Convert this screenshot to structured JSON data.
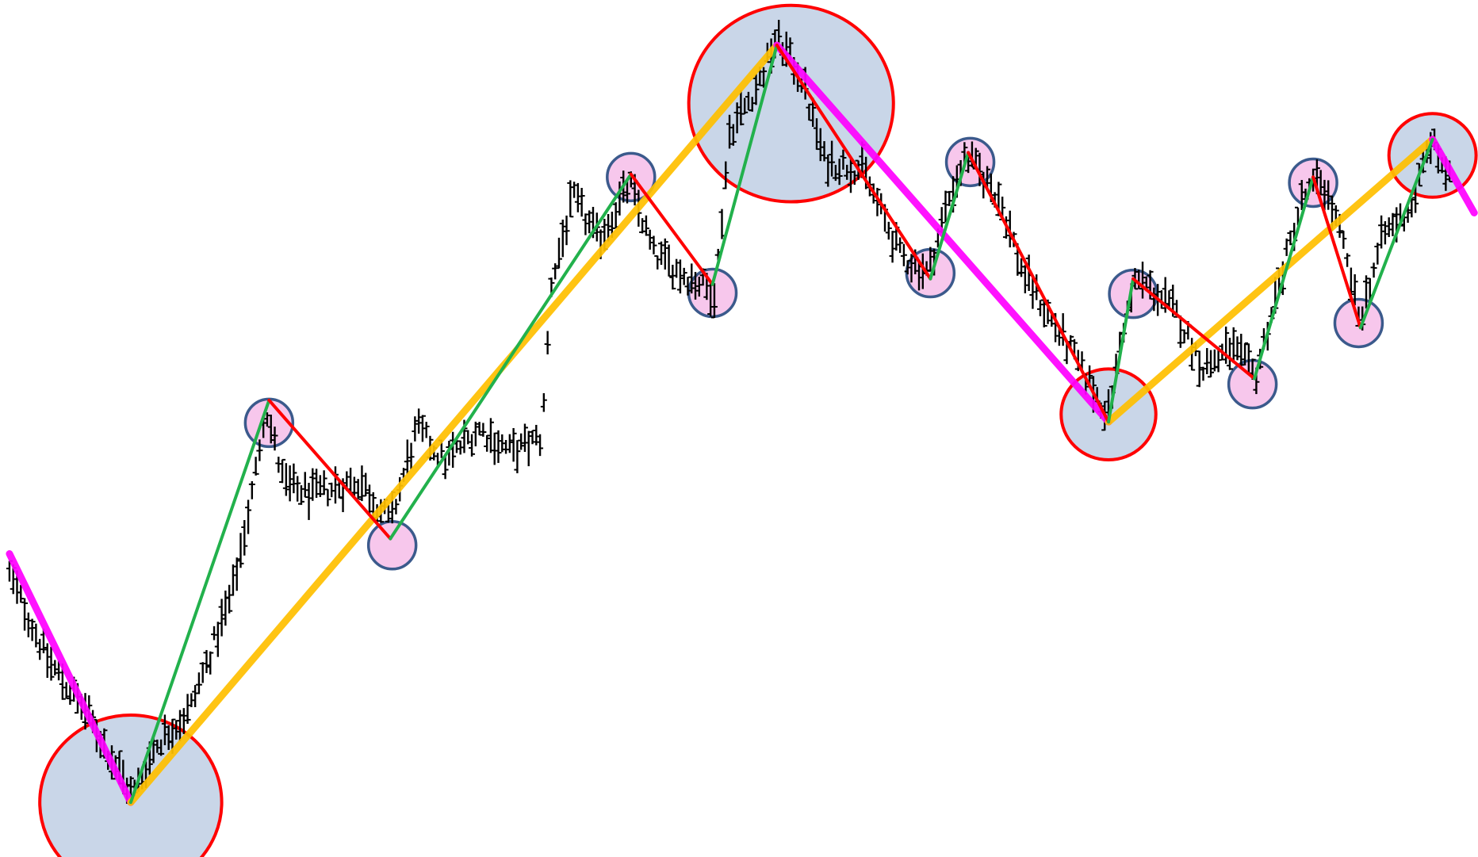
{
  "chart_data": {
    "type": "ohlc",
    "title": "",
    "xlabel": "",
    "ylabel": "",
    "axes_visible": false,
    "grid": false,
    "legend": "none",
    "xlim": [
      0,
      1560
    ],
    "ylim": [
      0,
      910
    ],
    "colors": {
      "bars": "#000000",
      "primary_up": "#ffc000",
      "primary_down": "#ff00ff",
      "minor_up": "#22b14c",
      "minor_down": "#ff0000",
      "major_circle_fill": "#c9d6e8",
      "major_circle_stroke": "#ff0000",
      "minor_circle_fill": "#f7c7ec",
      "minor_circle_stroke": "#3b5a8c"
    },
    "price_path": [
      [
        10,
        300
      ],
      [
        50,
        210
      ],
      [
        90,
        155
      ],
      [
        115,
        110
      ],
      [
        140,
        65
      ],
      [
        165,
        120
      ],
      [
        200,
        155
      ],
      [
        245,
        280
      ],
      [
        268,
        395
      ],
      [
        280,
        480
      ],
      [
        300,
        395
      ],
      [
        330,
        385
      ],
      [
        380,
        400
      ],
      [
        412,
        355
      ],
      [
        440,
        455
      ],
      [
        470,
        420
      ],
      [
        505,
        455
      ],
      [
        540,
        430
      ],
      [
        572,
        445
      ],
      [
        582,
        610
      ],
      [
        605,
        700
      ],
      [
        632,
        655
      ],
      [
        665,
        715
      ],
      [
        690,
        640
      ],
      [
        720,
        620
      ],
      [
        755,
        600
      ],
      [
        770,
        770
      ],
      [
        800,
        820
      ],
      [
        820,
        870
      ],
      [
        845,
        830
      ],
      [
        870,
        740
      ],
      [
        910,
        730
      ],
      [
        950,
        640
      ],
      [
        980,
        620
      ],
      [
        1000,
        695
      ],
      [
        1020,
        745
      ],
      [
        1055,
        700
      ],
      [
        1080,
        620
      ],
      [
        1110,
        570
      ],
      [
        1140,
        520
      ],
      [
        1170,
        470
      ],
      [
        1185,
        560
      ],
      [
        1200,
        615
      ],
      [
        1240,
        580
      ],
      [
        1270,
        520
      ],
      [
        1300,
        540
      ],
      [
        1325,
        510
      ],
      [
        1345,
        590
      ],
      [
        1375,
        700
      ],
      [
        1395,
        720
      ],
      [
        1415,
        660
      ],
      [
        1435,
        570
      ],
      [
        1460,
        660
      ],
      [
        1490,
        690
      ],
      [
        1510,
        760
      ],
      [
        1530,
        720
      ]
    ],
    "primary_trend": [
      {
        "from": [
          10,
          322
        ],
        "to": [
          138,
          58
        ],
        "direction": "down"
      },
      {
        "from": [
          138,
          58
        ],
        "to": [
          820,
          862
        ],
        "direction": "up"
      },
      {
        "from": [
          820,
          862
        ],
        "to": [
          1170,
          462
        ],
        "direction": "down"
      },
      {
        "from": [
          1170,
          462
        ],
        "to": [
          1512,
          762
        ],
        "direction": "up"
      },
      {
        "from": [
          1512,
          762
        ],
        "to": [
          1556,
          684
        ],
        "direction": "down"
      }
    ],
    "minor_swings": [
      {
        "from": [
          138,
          58
        ],
        "to": [
          284,
          485
        ],
        "direction": "up"
      },
      {
        "from": [
          284,
          485
        ],
        "to": [
          412,
          338
        ],
        "direction": "down"
      },
      {
        "from": [
          412,
          338
        ],
        "to": [
          666,
          725
        ],
        "direction": "up"
      },
      {
        "from": [
          666,
          725
        ],
        "to": [
          752,
          608
        ],
        "direction": "down"
      },
      {
        "from": [
          752,
          608
        ],
        "to": [
          820,
          862
        ],
        "direction": "up"
      },
      {
        "from": [
          820,
          862
        ],
        "to": [
          982,
          614
        ],
        "direction": "down"
      },
      {
        "from": [
          982,
          614
        ],
        "to": [
          1022,
          748
        ],
        "direction": "up"
      },
      {
        "from": [
          1022,
          748
        ],
        "to": [
          1170,
          462
        ],
        "direction": "down"
      },
      {
        "from": [
          1170,
          462
        ],
        "to": [
          1196,
          614
        ],
        "direction": "up"
      },
      {
        "from": [
          1196,
          614
        ],
        "to": [
          1324,
          508
        ],
        "direction": "down"
      },
      {
        "from": [
          1324,
          508
        ],
        "to": [
          1386,
          722
        ],
        "direction": "up"
      },
      {
        "from": [
          1386,
          722
        ],
        "to": [
          1436,
          562
        ],
        "direction": "down"
      },
      {
        "from": [
          1436,
          562
        ],
        "to": [
          1512,
          762
        ],
        "direction": "up"
      }
    ],
    "major_pivots": [
      {
        "x": 138,
        "y": 58,
        "type": "low"
      },
      {
        "x": 835,
        "y": 800,
        "type": "high"
      },
      {
        "x": 1170,
        "y": 470,
        "type": "low"
      },
      {
        "x": 1512,
        "y": 745,
        "type": "high"
      }
    ],
    "minor_pivots": [
      {
        "x": 284,
        "y": 461,
        "type": "high"
      },
      {
        "x": 414,
        "y": 331,
        "type": "low"
      },
      {
        "x": 666,
        "y": 722,
        "type": "high"
      },
      {
        "x": 752,
        "y": 599,
        "type": "low"
      },
      {
        "x": 982,
        "y": 620,
        "type": "low"
      },
      {
        "x": 1024,
        "y": 738,
        "type": "high"
      },
      {
        "x": 1196,
        "y": 598,
        "type": "high"
      },
      {
        "x": 1322,
        "y": 502,
        "type": "low"
      },
      {
        "x": 1386,
        "y": 716,
        "type": "high"
      },
      {
        "x": 1434,
        "y": 567,
        "type": "low"
      }
    ]
  }
}
